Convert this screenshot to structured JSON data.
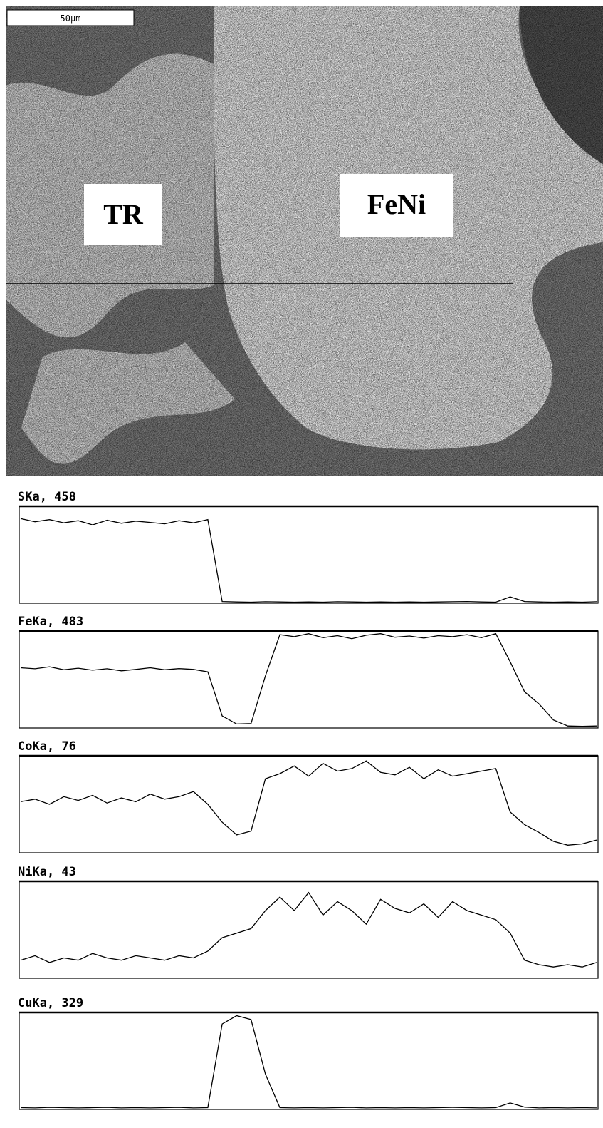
{
  "image": {
    "scale_bar": "50µm",
    "labels": [
      "TR",
      "FeNi"
    ]
  },
  "chart_data": [
    {
      "type": "line",
      "title": "SKa, 458",
      "color": "#000000",
      "ylim": [
        0,
        458
      ],
      "values": [
        400,
        385,
        395,
        380,
        390,
        370,
        392,
        378,
        388,
        382,
        375,
        390,
        380,
        395,
        8,
        6,
        5,
        7,
        6,
        5,
        6,
        5,
        7,
        6,
        5,
        6,
        5,
        6,
        5,
        6,
        7,
        8,
        6,
        5,
        30,
        8,
        6,
        5,
        6,
        5,
        7
      ]
    },
    {
      "type": "line",
      "title": "FeKa, 483",
      "color": "#000000",
      "ylim": [
        0,
        483
      ],
      "values": [
        300,
        295,
        305,
        290,
        298,
        288,
        295,
        285,
        292,
        300,
        290,
        296,
        292,
        280,
        60,
        20,
        22,
        260,
        465,
        455,
        470,
        450,
        460,
        445,
        462,
        470,
        452,
        458,
        448,
        460,
        455,
        465,
        450,
        470,
        330,
        180,
        120,
        40,
        10,
        8,
        10
      ]
    },
    {
      "type": "line",
      "title": "CoKa, 76",
      "color": "#000000",
      "ylim": [
        0,
        76
      ],
      "values": [
        40,
        42,
        38,
        44,
        41,
        45,
        39,
        43,
        40,
        46,
        42,
        44,
        48,
        38,
        24,
        14,
        17,
        58,
        62,
        68,
        60,
        70,
        64,
        66,
        72,
        63,
        61,
        67,
        58,
        65,
        60,
        62,
        64,
        66,
        32,
        22,
        16,
        9,
        6,
        7,
        10
      ]
    },
    {
      "type": "line",
      "title": "NiKa, 43",
      "color": "#000000",
      "ylim": [
        0,
        43
      ],
      "values": [
        8,
        10,
        7,
        9,
        8,
        11,
        9,
        8,
        10,
        9,
        8,
        10,
        9,
        12,
        18,
        20,
        22,
        30,
        36,
        30,
        38,
        28,
        34,
        30,
        24,
        35,
        31,
        29,
        33,
        27,
        34,
        30,
        28,
        26,
        20,
        8,
        6,
        5,
        6,
        5,
        7
      ]
    },
    {
      "type": "line",
      "title": "CuKa, 329",
      "color": "#000000",
      "ylim": [
        0,
        329
      ],
      "values": [
        6,
        5,
        7,
        6,
        5,
        6,
        7,
        5,
        6,
        5,
        6,
        7,
        5,
        6,
        290,
        318,
        305,
        120,
        6,
        5,
        6,
        5,
        6,
        7,
        5,
        6,
        5,
        6,
        5,
        6,
        7,
        6,
        5,
        6,
        22,
        8,
        5,
        6,
        5,
        6,
        5
      ]
    }
  ]
}
